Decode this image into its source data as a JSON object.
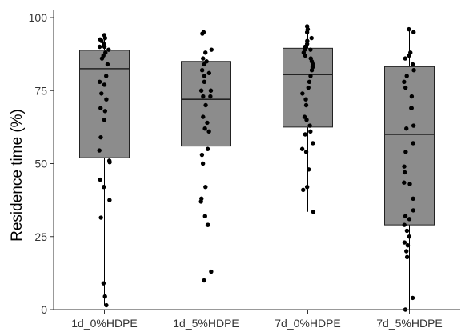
{
  "chart_data": {
    "type": "box",
    "ylabel": "Residence time (%)",
    "xlabel": "",
    "ylim": [
      0,
      100
    ],
    "yticks": [
      0,
      25,
      50,
      75,
      100
    ],
    "grid": false,
    "legend": "none",
    "box_color": "#8c8c8c",
    "point_color": "#000000",
    "categories": [
      "1d_0%HDPE",
      "1d_5%HDPE",
      "7d_0%HDPE",
      "7d_5%HDPE"
    ],
    "boxes": [
      {
        "min": 1.5,
        "q1": 52,
        "median": 82.5,
        "q3": 88.8,
        "max": 94
      },
      {
        "min": 10,
        "q1": 56,
        "median": 72,
        "q3": 85,
        "max": 95
      },
      {
        "min": 33.5,
        "q1": 62.5,
        "median": 80.5,
        "q3": 89.5,
        "max": 97
      },
      {
        "min": 0,
        "q1": 29,
        "median": 60,
        "q3": 83.2,
        "max": 96
      }
    ],
    "points": [
      [
        94,
        93,
        92.5,
        92,
        91,
        90,
        90,
        89,
        88,
        87,
        86,
        84,
        80,
        78,
        77,
        74,
        72,
        69,
        68,
        65,
        59,
        54.5,
        51,
        50.5,
        44.5,
        42,
        37.5,
        31.5,
        9,
        4.5,
        1.5
      ],
      [
        95,
        94.5,
        89,
        88,
        86,
        85,
        84,
        82,
        81,
        80,
        78,
        75,
        75,
        73,
        73,
        70,
        66,
        64,
        62,
        61,
        55,
        53,
        50,
        42,
        38,
        37,
        32,
        29,
        29,
        13,
        10
      ],
      [
        97,
        96,
        95,
        93,
        92,
        91,
        90,
        89,
        89,
        88,
        87,
        86,
        85,
        84,
        83,
        82,
        80,
        78,
        76,
        74,
        72,
        70,
        66,
        65,
        63,
        61,
        60,
        57,
        55,
        54,
        48,
        42,
        41,
        33.5
      ],
      [
        96,
        95,
        88,
        87,
        86,
        84,
        82,
        80,
        78,
        76,
        73,
        69,
        69,
        63,
        62,
        57,
        54,
        49,
        47,
        43.5,
        43,
        38,
        34,
        32,
        31,
        29,
        27,
        25,
        23,
        22,
        20,
        18,
        4,
        0
      ]
    ]
  }
}
